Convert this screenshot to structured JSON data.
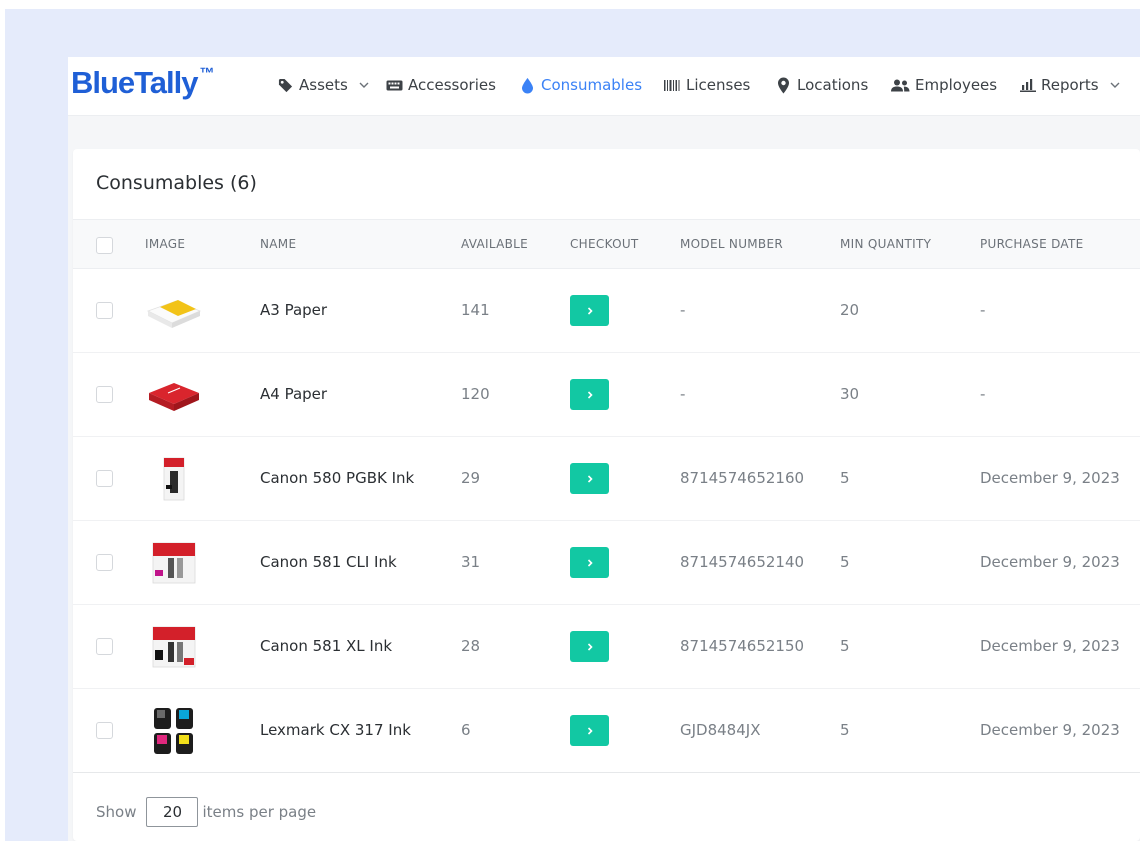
{
  "brand": {
    "name": "BlueTally",
    "tm": "™"
  },
  "nav": {
    "assets": "Assets",
    "accessories": "Accessories",
    "consumables": "Consumables",
    "licenses": "Licenses",
    "locations": "Locations",
    "employees": "Employees",
    "reports": "Reports"
  },
  "page": {
    "title": "Consumables (6)"
  },
  "table": {
    "headers": {
      "image": "IMAGE",
      "name": "NAME",
      "available": "AVAILABLE",
      "checkout": "CHECKOUT",
      "model_number": "MODEL NUMBER",
      "min_quantity": "MIN QUANTITY",
      "purchase_date": "PURCHASE DATE"
    },
    "rows": [
      {
        "image": "paper-ream-yellow",
        "name": "A3 Paper",
        "available": "141",
        "model_number": "-",
        "min_quantity": "20",
        "purchase_date": "-"
      },
      {
        "image": "paper-ream-red",
        "name": "A4 Paper",
        "available": "120",
        "model_number": "-",
        "min_quantity": "30",
        "purchase_date": "-"
      },
      {
        "image": "ink-cartridge-black",
        "name": "Canon 580 PGBK Ink",
        "available": "29",
        "model_number": "8714574652160",
        "min_quantity": "5",
        "purchase_date": "December 9, 2023"
      },
      {
        "image": "ink-cartridge-magenta",
        "name": "Canon 581 CLI Ink",
        "available": "31",
        "model_number": "8714574652140",
        "min_quantity": "5",
        "purchase_date": "December 9, 2023"
      },
      {
        "image": "ink-cartridge-xl",
        "name": "Canon 581 XL Ink",
        "available": "28",
        "model_number": "8714574652150",
        "min_quantity": "5",
        "purchase_date": "December 9, 2023"
      },
      {
        "image": "toner-cartridges-cmyk",
        "name": "Lexmark CX 317 Ink",
        "available": "6",
        "model_number": "GJD8484JX",
        "min_quantity": "5",
        "purchase_date": "December 9, 2023"
      }
    ]
  },
  "pagination": {
    "show": "Show",
    "per_page_value": "20",
    "items_per_page": "items per page"
  },
  "colors": {
    "brand": "#1f5fd6",
    "active_nav": "#3b82f6",
    "checkout_button": "#12c8a3"
  }
}
